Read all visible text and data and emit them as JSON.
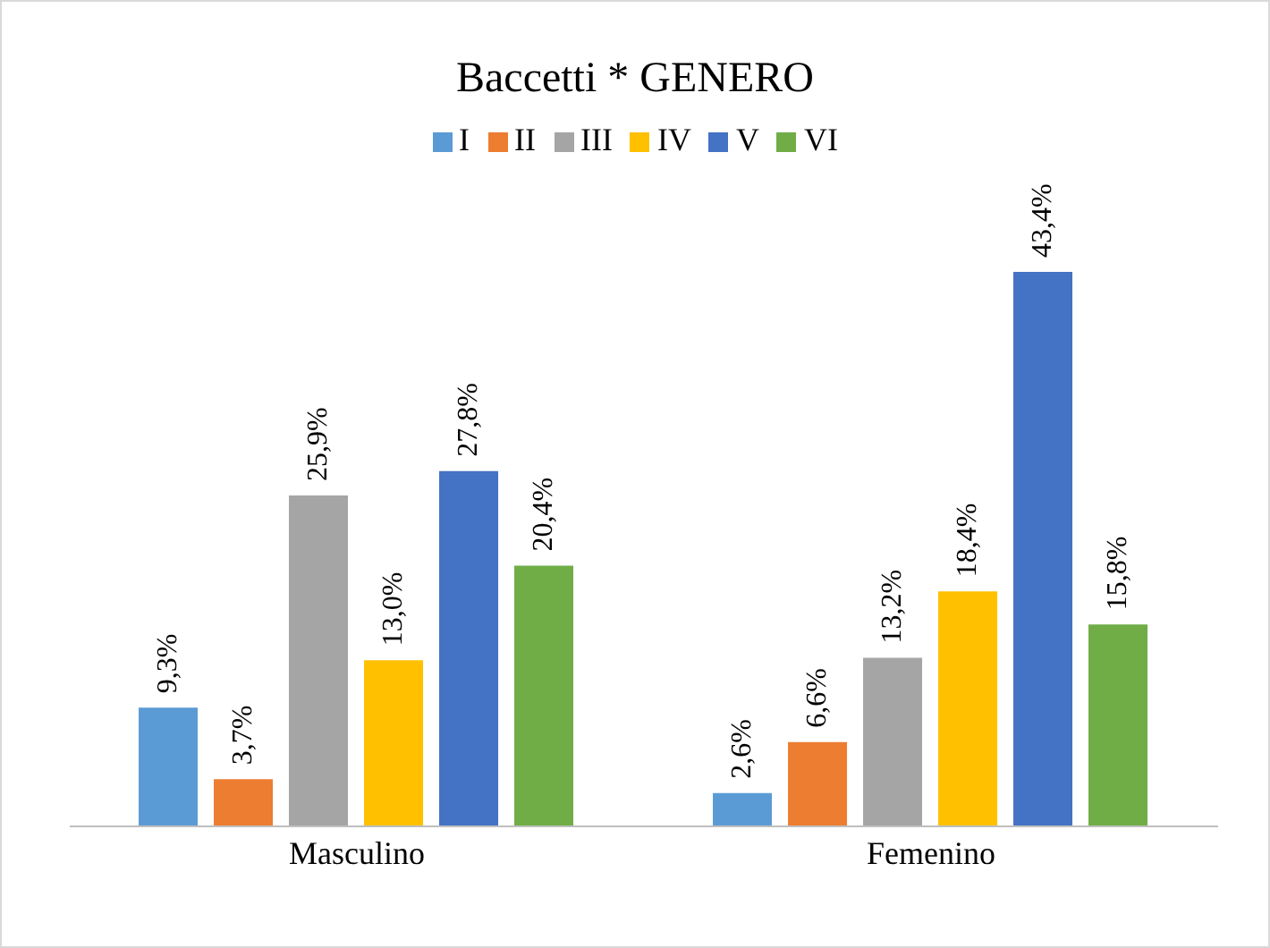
{
  "chart_data": {
    "type": "bar",
    "title": "Baccetti * GENERO",
    "categories": [
      "Masculino",
      "Femenino"
    ],
    "series": [
      {
        "name": "I",
        "color": "#5b9bd5",
        "values": [
          9.3,
          2.6
        ],
        "value_labels": [
          "9,3%",
          "2,6%"
        ]
      },
      {
        "name": "II",
        "color": "#ed7d31",
        "values": [
          3.7,
          6.6
        ],
        "value_labels": [
          "3,7%",
          "6,6%"
        ]
      },
      {
        "name": "III",
        "color": "#a5a5a5",
        "values": [
          25.9,
          13.2
        ],
        "value_labels": [
          "25,9%",
          "13,2%"
        ]
      },
      {
        "name": "IV",
        "color": "#ffc000",
        "values": [
          13.0,
          18.4
        ],
        "value_labels": [
          "13,0%",
          "18,4%"
        ]
      },
      {
        "name": "V",
        "color": "#4472c4",
        "values": [
          27.8,
          43.4
        ],
        "value_labels": [
          "27,8%",
          "43,4%"
        ]
      },
      {
        "name": "VI",
        "color": "#70ad47",
        "values": [
          20.4,
          15.8
        ],
        "value_labels": [
          "20,4%",
          "15,8%"
        ]
      }
    ],
    "legend": "top",
    "grid": false,
    "tick_labels": "x"
  }
}
